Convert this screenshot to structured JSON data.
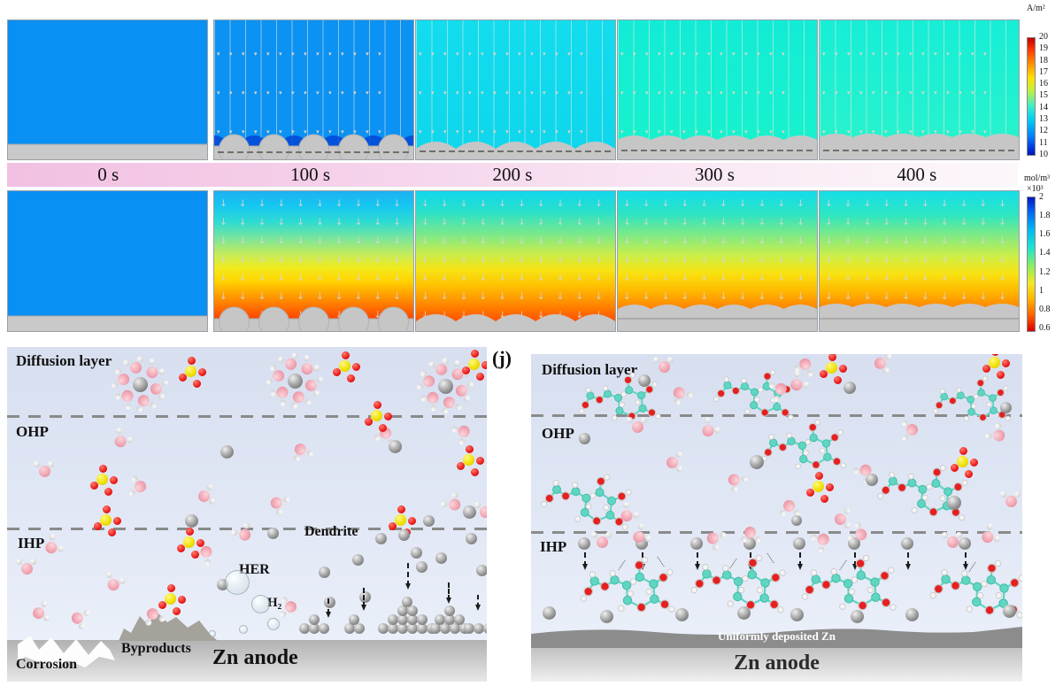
{
  "colorbar_current": {
    "title": "A/m²",
    "ticks": [
      "20",
      "19",
      "18",
      "17",
      "16",
      "15",
      "14",
      "13",
      "12",
      "11",
      "10"
    ]
  },
  "colorbar_concentration": {
    "title": "mol/m³",
    "scale": "×10³",
    "ticks": [
      "2",
      "1.8",
      "1.6",
      "1.4",
      "1.2",
      "1",
      "0.8",
      "0.6"
    ]
  },
  "timeline": {
    "labels": [
      "0 s",
      "100 s",
      "200 s",
      "300 s",
      "400 s"
    ]
  },
  "left_diagram": {
    "layer_diffusion": "Diffusion layer",
    "layer_ohp": "OHP",
    "layer_ihp": "IHP",
    "dendrite": "Dendrite",
    "her": "HER",
    "h2": "H₂",
    "corrosion": "Corrosion",
    "byproducts": "Byproducts",
    "anode": "Zn anode"
  },
  "right_diagram": {
    "panel_label": "(j)",
    "layer_diffusion": "Diffusion layer",
    "layer_ohp": "OHP",
    "layer_ihp": "IHP",
    "uniform_zn": "Uniformly deposited Zn",
    "anode": "Zn anode"
  },
  "chart_data": [
    {
      "type": "heatmap",
      "quantity": "current density at Zn electrode",
      "unit": "A/m²",
      "colorbar_ticks": [
        20,
        19,
        18,
        17,
        16,
        15,
        14,
        13,
        12,
        11,
        10
      ],
      "colorbar_range": [
        10,
        20
      ],
      "times_s": [
        0,
        100,
        200,
        300,
        400
      ]
    },
    {
      "type": "heatmap",
      "quantity": "electrolyte concentration",
      "unit": "mol/m³ ×10³",
      "colorbar_ticks": [
        2,
        1.8,
        1.6,
        1.4,
        1.2,
        1,
        0.8,
        0.6
      ],
      "colorbar_range": [
        0.6,
        2
      ],
      "times_s": [
        0,
        100,
        200,
        300,
        400
      ]
    }
  ]
}
